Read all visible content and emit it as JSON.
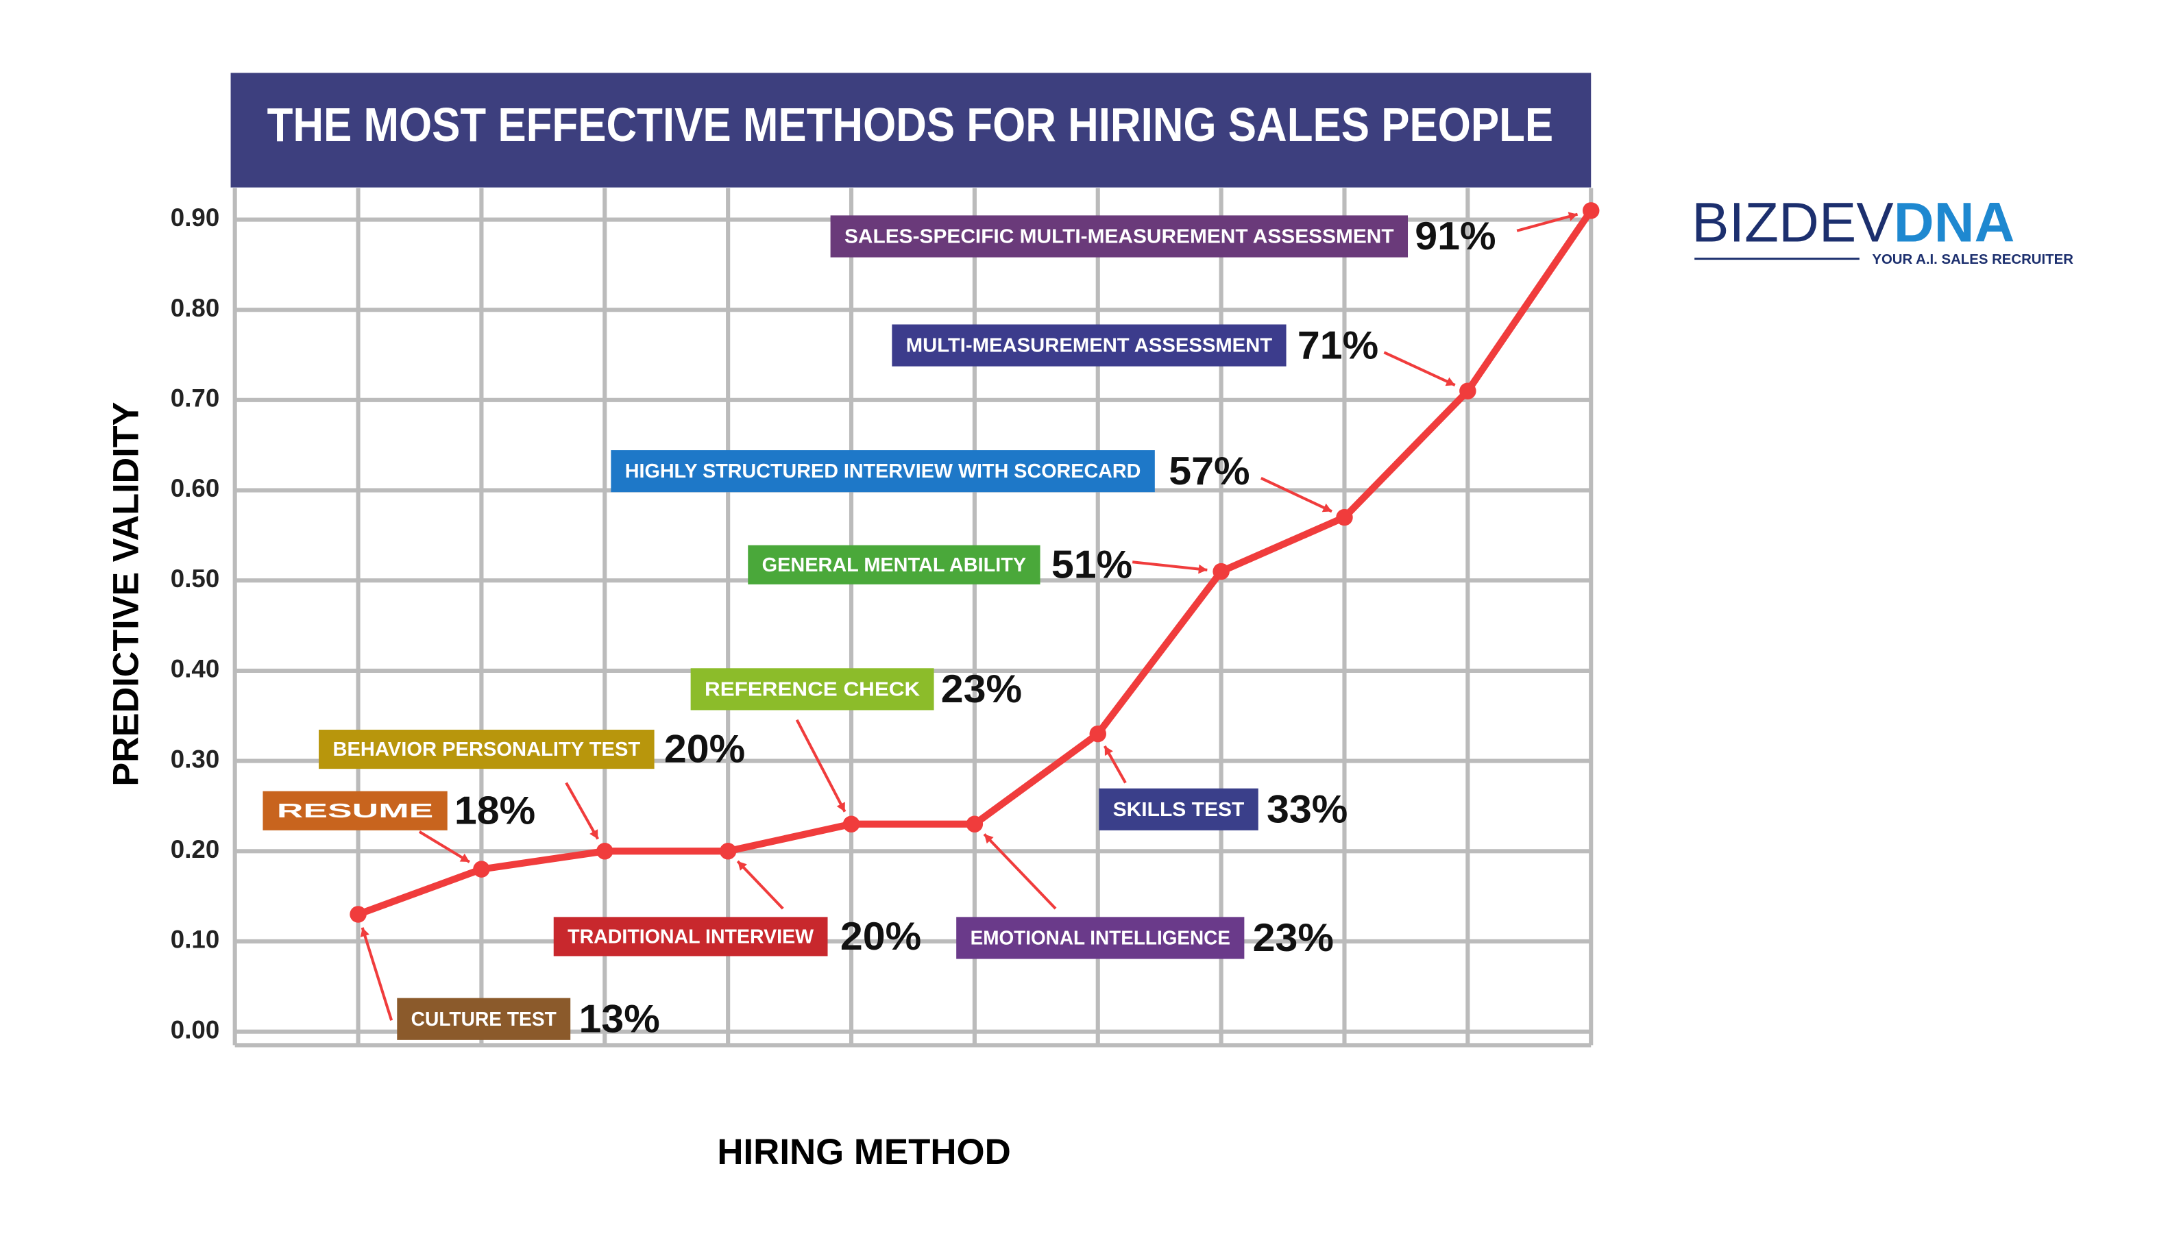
{
  "chart_data": {
    "type": "line",
    "title": "THE MOST EFFECTIVE METHODS FOR HIRING SALES PEOPLE",
    "xlabel": "HIRING METHOD",
    "ylabel": "PREDICTIVE VALIDITY",
    "categories": [
      "CULTURE TEST",
      "RESUME",
      "BEHAVIOR PERSONALITY TEST",
      "TRADITIONAL INTERVIEW",
      "REFERENCE CHECK",
      "EMOTIONAL INTELLIGENCE",
      "SKILLS TEST",
      "GENERAL MENTAL ABILITY",
      "HIGHLY STRUCTURED INTERVIEW WITH SCORECARD",
      "MULTI-MEASUREMENT ASSESSMENT",
      "SALES-SPECIFIC MULTI-MEASUREMENT ASSESSMENT"
    ],
    "values": [
      0.13,
      0.18,
      0.2,
      0.2,
      0.23,
      0.23,
      0.33,
      0.51,
      0.57,
      0.71,
      0.91
    ],
    "value_labels": [
      "13%",
      "18%",
      "20%",
      "20%",
      "23%",
      "23%",
      "33%",
      "51%",
      "57%",
      "71%",
      "91%"
    ],
    "color": "#f03c3c",
    "ylim": [
      -0.015,
      0.935
    ],
    "yticks": [
      {
        "value": 0,
        "label": "0.00"
      },
      {
        "value": 0.1,
        "label": "0.10"
      },
      {
        "value": 0.2,
        "label": "0.20"
      },
      {
        "value": 0.3,
        "label": "0.30"
      },
      {
        "value": 0.4,
        "label": "0.40"
      },
      {
        "value": 0.5,
        "label": "0.50"
      },
      {
        "value": 0.6,
        "label": "0.60"
      },
      {
        "value": 0.7,
        "label": "0.70"
      },
      {
        "value": 0.8,
        "label": "0.80"
      },
      {
        "value": 0.9,
        "label": "0.90"
      }
    ],
    "grid": true
  },
  "logo": {
    "name_part1": "BIZDEV",
    "name_part2": "DNA",
    "tagline": "YOUR A.I. SALES RECRUITER"
  }
}
